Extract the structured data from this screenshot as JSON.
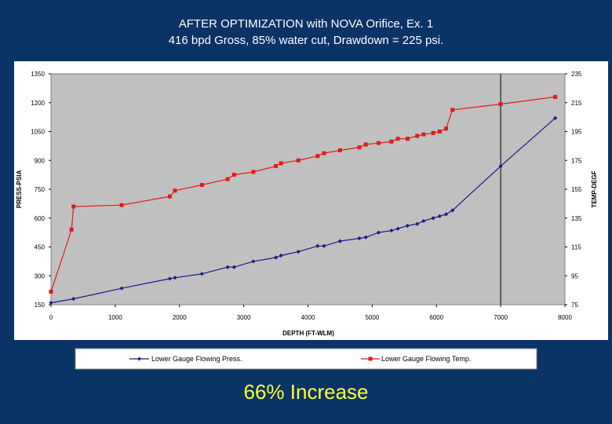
{
  "chart_data": {
    "type": "line",
    "title": "AFTER OPTIMIZATION with NOVA Orifice, Ex. 1",
    "subtitle": "416 bpd Gross, 85% water cut, Drawdown = 225 psi.",
    "xlabel": "DEPTH (FT-WLM)",
    "ylabel_left": "PRESS-PSIA",
    "ylabel_right": "TEMP-DEGF",
    "xlim": [
      0,
      8000
    ],
    "ylim_left": [
      150,
      1350
    ],
    "ylim_right": [
      75,
      235
    ],
    "x_ticks": [
      "0",
      "1000",
      "2000",
      "3000",
      "4000",
      "5000",
      "6000",
      "7000",
      "8000"
    ],
    "y_left_ticks": [
      "150",
      "300",
      "450",
      "600",
      "750",
      "900",
      "1050",
      "1200",
      "1350"
    ],
    "y_right_ticks": [
      "75",
      "95",
      "115",
      "135",
      "155",
      "175",
      "195",
      "215",
      "235"
    ],
    "vertical_marker_x": 7000,
    "legend_position": "bottom",
    "colors": {
      "pressure": "#1a1a8c",
      "temperature": "#e31a1a",
      "plot_bg": "#c0c0c0",
      "page_bg": "#0a3366",
      "caption": "#ffff33"
    },
    "series": [
      {
        "name": "Lower Gauge Flowing Press.",
        "axis": "left",
        "marker": "diamond",
        "x": [
          0,
          350,
          1100,
          1850,
          1930,
          2350,
          2750,
          2850,
          3150,
          3500,
          3580,
          3850,
          4150,
          4250,
          4500,
          4800,
          4900,
          5100,
          5300,
          5400,
          5550,
          5700,
          5800,
          5950,
          6050,
          6150,
          6250,
          7000,
          7850
        ],
        "values": [
          160,
          180,
          235,
          285,
          290,
          310,
          345,
          345,
          375,
          395,
          405,
          425,
          455,
          455,
          480,
          495,
          500,
          525,
          535,
          545,
          560,
          570,
          585,
          600,
          610,
          620,
          640,
          870,
          1120
        ]
      },
      {
        "name": "Lower Gauge Flowing Temp.",
        "axis": "right",
        "marker": "square",
        "x": [
          0,
          320,
          350,
          1100,
          1850,
          1930,
          2350,
          2750,
          2850,
          3150,
          3500,
          3580,
          3850,
          4150,
          4250,
          4500,
          4800,
          4900,
          5100,
          5300,
          5400,
          5550,
          5700,
          5800,
          5950,
          6050,
          6150,
          6250,
          7000,
          7850
        ],
        "values": [
          84,
          127,
          143,
          144,
          150,
          154,
          158,
          162,
          165,
          167,
          171,
          173,
          175,
          178,
          180,
          182,
          184,
          186,
          187,
          188,
          190,
          190,
          192,
          193,
          194,
          195,
          197,
          210,
          214,
          219
        ]
      }
    ]
  },
  "caption": "66% Increase"
}
